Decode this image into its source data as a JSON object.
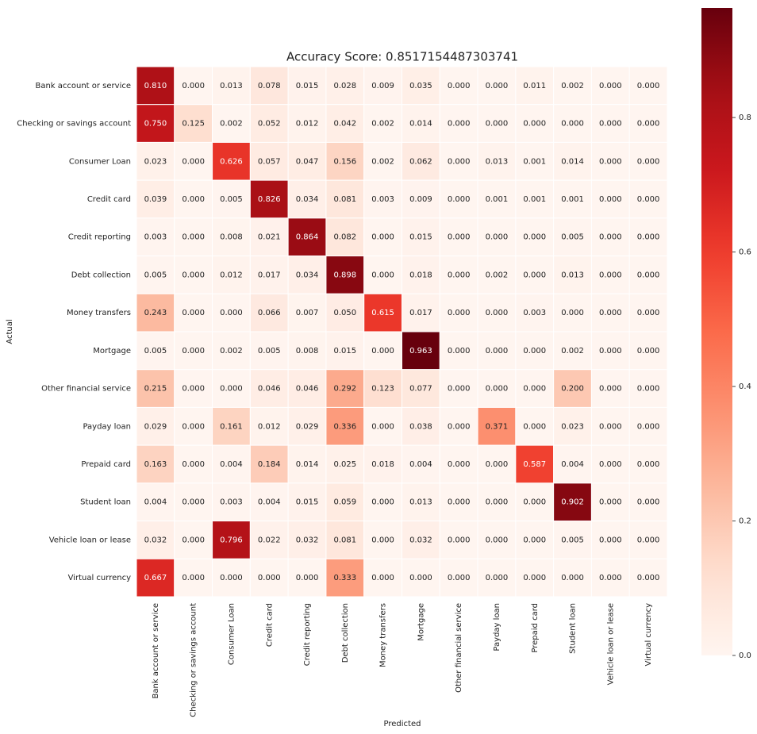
{
  "chart_data": {
    "type": "heatmap",
    "title": "Accuracy Score: 0.8517154487303741",
    "x_label": "Predicted",
    "y_label": "Actual",
    "x_categories": [
      "Bank account or service",
      "Checking or savings account",
      "Consumer Loan",
      "Credit card",
      "Credit reporting",
      "Debt collection",
      "Money transfers",
      "Mortgage",
      "Other financial service",
      "Payday loan",
      "Prepaid card",
      "Student loan",
      "Vehicle loan or lease",
      "Virtual currency"
    ],
    "y_categories": [
      "Bank account or service",
      "Checking or savings account",
      "Consumer Loan",
      "Credit card",
      "Credit reporting",
      "Debt collection",
      "Money transfers",
      "Mortgage",
      "Other financial service",
      "Payday loan",
      "Prepaid card",
      "Student loan",
      "Vehicle loan or lease",
      "Virtual currency"
    ],
    "values": [
      [
        0.81,
        0,
        0.013,
        0.078,
        0.015,
        0.028,
        0.009,
        0.035,
        0,
        0,
        0.011,
        0.002,
        0,
        0
      ],
      [
        0.75,
        0.125,
        0.002,
        0.052,
        0.012,
        0.042,
        0.002,
        0.014,
        0,
        0,
        0,
        0,
        0,
        0
      ],
      [
        0.023,
        0,
        0.626,
        0.057,
        0.047,
        0.156,
        0.002,
        0.062,
        0,
        0.013,
        0.001,
        0.014,
        0,
        0
      ],
      [
        0.039,
        0,
        0.005,
        0.826,
        0.034,
        0.081,
        0.003,
        0.009,
        0,
        0.001,
        0.001,
        0.001,
        0,
        0
      ],
      [
        0.003,
        0,
        0.008,
        0.021,
        0.864,
        0.082,
        0,
        0.015,
        0,
        0,
        0,
        0.005,
        0,
        0
      ],
      [
        0.005,
        0,
        0.012,
        0.017,
        0.034,
        0.898,
        0,
        0.018,
        0,
        0.002,
        0,
        0.013,
        0,
        0
      ],
      [
        0.243,
        0,
        0,
        0.066,
        0.007,
        0.05,
        0.615,
        0.017,
        0,
        0,
        0.003,
        0,
        0,
        0
      ],
      [
        0.005,
        0,
        0.002,
        0.005,
        0.008,
        0.015,
        0,
        0.963,
        0,
        0,
        0,
        0.002,
        0,
        0
      ],
      [
        0.215,
        0,
        0,
        0.046,
        0.046,
        0.292,
        0.123,
        0.077,
        0,
        0,
        0,
        0.2,
        0,
        0
      ],
      [
        0.029,
        0,
        0.161,
        0.012,
        0.029,
        0.336,
        0,
        0.038,
        0,
        0.371,
        0,
        0.023,
        0,
        0
      ],
      [
        0.163,
        0,
        0.004,
        0.184,
        0.014,
        0.025,
        0.018,
        0.004,
        0,
        0,
        0.587,
        0.004,
        0,
        0
      ],
      [
        0.004,
        0,
        0.003,
        0.004,
        0.015,
        0.059,
        0,
        0.013,
        0,
        0,
        0,
        0.902,
        0,
        0
      ],
      [
        0.032,
        0,
        0.796,
        0.022,
        0.032,
        0.081,
        0,
        0.032,
        0,
        0,
        0,
        0.005,
        0,
        0
      ],
      [
        0.667,
        0,
        0,
        0,
        0,
        0.333,
        0,
        0,
        0,
        0,
        0,
        0,
        0,
        0
      ]
    ],
    "value_labels": [
      [
        "0.810",
        "0.000",
        "0.013",
        "0.078",
        "0.015",
        "0.028",
        "0.009",
        "0.035",
        "0.000",
        "0.000",
        "0.011",
        "0.002",
        "0.000",
        "0.000"
      ],
      [
        "0.750",
        "0.125",
        "0.002",
        "0.052",
        "0.012",
        "0.042",
        "0.002",
        "0.014",
        "0.000",
        "0.000",
        "0.000",
        "0.000",
        "0.000",
        "0.000"
      ],
      [
        "0.023",
        "0.000",
        "0.626",
        "0.057",
        "0.047",
        "0.156",
        "0.002",
        "0.062",
        "0.000",
        "0.013",
        "0.001",
        "0.014",
        "0.000",
        "0.000"
      ],
      [
        "0.039",
        "0.000",
        "0.005",
        "0.826",
        "0.034",
        "0.081",
        "0.003",
        "0.009",
        "0.000",
        "0.001",
        "0.001",
        "0.001",
        "0.000",
        "0.000"
      ],
      [
        "0.003",
        "0.000",
        "0.008",
        "0.021",
        "0.864",
        "0.082",
        "0.000",
        "0.015",
        "0.000",
        "0.000",
        "0.000",
        "0.005",
        "0.000",
        "0.000"
      ],
      [
        "0.005",
        "0.000",
        "0.012",
        "0.017",
        "0.034",
        "0.898",
        "0.000",
        "0.018",
        "0.000",
        "0.002",
        "0.000",
        "0.013",
        "0.000",
        "0.000"
      ],
      [
        "0.243",
        "0.000",
        "0.000",
        "0.066",
        "0.007",
        "0.050",
        "0.615",
        "0.017",
        "0.000",
        "0.000",
        "0.003",
        "0.000",
        "0.000",
        "0.000"
      ],
      [
        "0.005",
        "0.000",
        "0.002",
        "0.005",
        "0.008",
        "0.015",
        "0.000",
        "0.963",
        "0.000",
        "0.000",
        "0.000",
        "0.002",
        "0.000",
        "0.000"
      ],
      [
        "0.215",
        "0.000",
        "0.000",
        "0.046",
        "0.046",
        "0.292",
        "0.123",
        "0.077",
        "0.000",
        "0.000",
        "0.000",
        "0.200",
        "0.000",
        "0.000"
      ],
      [
        "0.029",
        "0.000",
        "0.161",
        "0.012",
        "0.029",
        "0.336",
        "0.000",
        "0.038",
        "0.000",
        "0.371",
        "0.000",
        "0.023",
        "0.000",
        "0.000"
      ],
      [
        "0.163",
        "0.000",
        "0.004",
        "0.184",
        "0.014",
        "0.025",
        "0.018",
        "0.004",
        "0.000",
        "0.000",
        "0.587",
        "0.004",
        "0.000",
        "0.000"
      ],
      [
        "0.004",
        "0.000",
        "0.003",
        "0.004",
        "0.015",
        "0.059",
        "0.000",
        "0.013",
        "0.000",
        "0.000",
        "0.000",
        "0.902",
        "0.000",
        "0.000"
      ],
      [
        "0.032",
        "0.000",
        "0.796",
        "0.022",
        "0.032",
        "0.081",
        "0.000",
        "0.032",
        "0.000",
        "0.000",
        "0.000",
        "0.005",
        "0.000",
        "0.000"
      ],
      [
        "0.667",
        "0.000",
        "0.000",
        "0.000",
        "0.000",
        "0.333",
        "0.000",
        "0.000",
        "0.000",
        "0.000",
        "0.000",
        "0.000",
        "0.000",
        "0.000"
      ]
    ],
    "colormap": "Reds",
    "zlim": [
      0,
      0.963
    ],
    "zticks": [
      {
        "value": 0,
        "label": "0.0"
      },
      {
        "value": 0.2,
        "label": "0.2"
      },
      {
        "value": 0.4,
        "label": "0.4"
      },
      {
        "value": 0.6,
        "label": "0.6"
      },
      {
        "value": 0.8,
        "label": "0.8"
      }
    ]
  }
}
